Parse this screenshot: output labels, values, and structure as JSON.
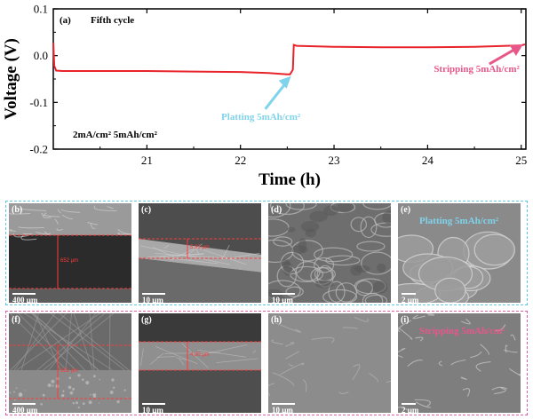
{
  "chart_data": {
    "type": "line",
    "panel_label": "(a)",
    "title": "Fifth cycle",
    "xlabel": "Time (h)",
    "ylabel": "Voltage (V)",
    "xlim": [
      20.0,
      25.05
    ],
    "ylim": [
      -0.2,
      0.1
    ],
    "xticks": [
      "21",
      "22",
      "23",
      "24",
      "25"
    ],
    "yticks": [
      "0.1",
      "0.0",
      "-0.1",
      "-0.2"
    ],
    "condition_label": "2mA/cm² 5mAh/cm²",
    "series": [
      {
        "color": "#e8232a",
        "x": [
          20.0,
          20.01,
          20.03,
          20.1,
          20.5,
          21.0,
          21.5,
          22.0,
          22.3,
          22.5,
          22.53,
          22.56,
          22.57,
          22.6,
          23.0,
          23.5,
          24.0,
          24.5,
          25.0,
          25.04
        ],
        "y": [
          0.028,
          -0.022,
          -0.032,
          -0.033,
          -0.033,
          -0.033,
          -0.034,
          -0.035,
          -0.037,
          -0.04,
          -0.04,
          -0.03,
          0.023,
          0.021,
          0.019,
          0.018,
          0.018,
          0.019,
          0.022,
          0.024
        ]
      }
    ],
    "annotations": [
      {
        "text": "Platting 5mAh/cm²",
        "color": "#7fd3ea",
        "at_x": 22.55,
        "at_y": -0.042
      },
      {
        "text": "Stripping 5mAh/cm²",
        "color": "#e8578a",
        "at_x": 25.02,
        "at_y": 0.024
      }
    ]
  },
  "rows": [
    {
      "border_color": "#5ec8e0",
      "panels": [
        {
          "label": "(b)",
          "scale": "400 μm",
          "measure": "652 μm",
          "bg": "#2b2b2b"
        },
        {
          "label": "(c)",
          "scale": "10 μm",
          "measure": "5.93 μm",
          "bg": "#7a7a7a"
        },
        {
          "label": "(d)",
          "scale": "10 μm",
          "measure": "",
          "bg": "#6e6e6e"
        },
        {
          "label": "(e)",
          "scale": "2 μm",
          "measure": "",
          "bg": "#8a8a8a",
          "note": "Platting 5mAh/cm²",
          "note_color": "#7fd3ea"
        }
      ]
    },
    {
      "border_color": "#d85fa8",
      "panels": [
        {
          "label": "(f)",
          "scale": "400 μm",
          "measure": "652 μm",
          "bg": "#4a4a4a"
        },
        {
          "label": "(g)",
          "scale": "10 μm",
          "measure": "4.30 μm",
          "bg": "#5a5a5a"
        },
        {
          "label": "(h)",
          "scale": "10 μm",
          "measure": "",
          "bg": "#8c8c8c"
        },
        {
          "label": "(i)",
          "scale": "2 μm",
          "measure": "",
          "bg": "#7e7e7e",
          "note": "Stripping 5mAh/cm²",
          "note_color": "#e8578a"
        }
      ]
    }
  ]
}
